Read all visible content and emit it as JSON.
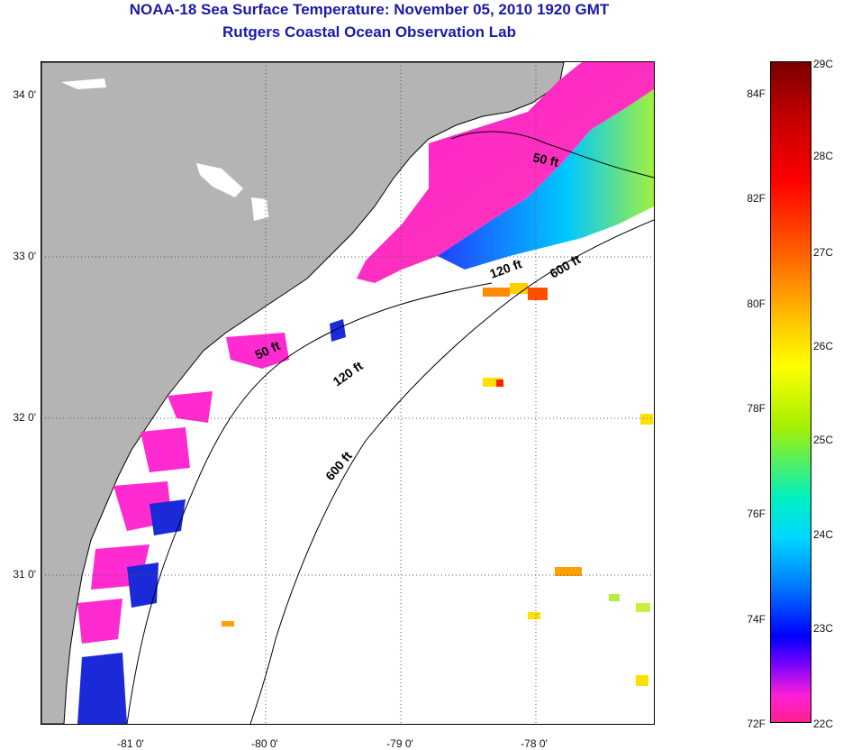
{
  "title": {
    "line1": "NOAA-18 Sea Surface Temperature:  November 05, 2010 1920 GMT",
    "line2": "Rutgers Coastal Ocean Observation Lab"
  },
  "colors": {
    "land": "#b4b4b4",
    "cloud": "#ffffff",
    "title_text": "#1a1aa8",
    "isobath": "#000000",
    "grid": "#555555"
  },
  "axes": {
    "lat_labels": [
      "34 0'",
      "33 0'",
      "32 0'",
      "31 0'"
    ],
    "lon_labels": [
      "-81 0'",
      "-80 0'",
      "-79 0'",
      "-78 0'"
    ]
  },
  "isobaths": {
    "label_50_a": "50 ft",
    "label_50_b": "50 ft",
    "label_120_a": "120 ft",
    "label_120_b": "120 ft",
    "label_600_a": "600 ft",
    "label_600_b": "600 ft"
  },
  "colorbar": {
    "fahrenheit": [
      "84F",
      "82F",
      "80F",
      "78F",
      "76F",
      "74F",
      "72F"
    ],
    "celsius": [
      "29C",
      "28C",
      "27C",
      "26C",
      "25C",
      "24C",
      "23C",
      "22C"
    ]
  }
}
